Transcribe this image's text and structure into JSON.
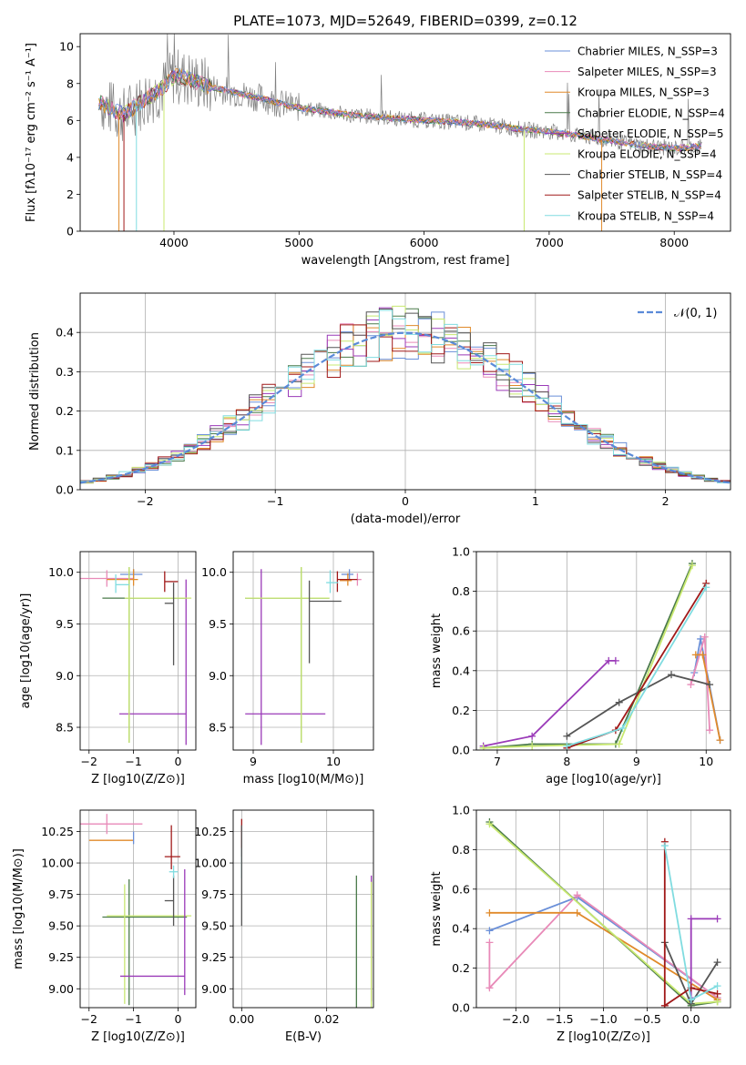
{
  "colors": {
    "chabrier_miles": "#6a8fd8",
    "salpeter_miles": "#e88ab8",
    "kroupa_miles": "#e08a2a",
    "chabrier_elodie": "#4a7a4a",
    "salpeter_elodie": "#9a3ab8",
    "kroupa_elodie": "#c8e870",
    "chabrier_stelib": "#555555",
    "salpeter_stelib": "#a01818",
    "kroupa_stelib": "#80dce0",
    "normal_fit": "#5a8ad8"
  },
  "chart_data": [
    {
      "type": "line",
      "title": "PLATE=1073, MJD=52649, FIBERID=0399, z=0.12",
      "xlabel": "wavelength [Angstrom, rest frame]",
      "ylabel": "Flux [fλ10⁻¹⁷ erg cm⁻² s⁻¹ A⁻¹]",
      "xlim": [
        3250,
        8450
      ],
      "ylim": [
        0,
        10.7
      ],
      "xticks": [
        4000,
        5000,
        6000,
        7000,
        8000
      ],
      "yticks": [
        0,
        2,
        4,
        6,
        8,
        10
      ],
      "legend_position": "top-right",
      "legend": [
        "Chabrier MILES, N_SSP=3",
        "Salpeter MILES, N_SSP=3",
        "Kroupa MILES, N_SSP=3",
        "Chabrier ELODIE, N_SSP=4",
        "Salpeter ELODIE, N_SSP=5",
        "Kroupa ELODIE, N_SSP=4",
        "Chabrier STELIB, N_SSP=4",
        "Salpeter STELIB, N_SSP=4",
        "Kroupa STELIB, N_SSP=4"
      ],
      "continuum": {
        "x": [
          3400,
          3500,
          3600,
          3700,
          3800,
          3900,
          4000,
          4100,
          4300,
          4500,
          4700,
          4860,
          5000,
          5200,
          5400,
          5600,
          5800,
          6000,
          6300,
          6600,
          6800,
          7000,
          7200,
          7400,
          7600,
          7800,
          8000,
          8200
        ],
        "y": [
          7.0,
          6.6,
          6.3,
          6.8,
          7.3,
          7.7,
          8.4,
          8.3,
          7.8,
          7.5,
          7.2,
          6.9,
          6.7,
          6.5,
          6.3,
          6.2,
          6.1,
          6.0,
          5.9,
          5.7,
          5.5,
          5.4,
          5.2,
          5.0,
          4.8,
          4.6,
          4.5,
          4.6
        ]
      }
    },
    {
      "type": "step",
      "xlabel": "(data-model)/error",
      "ylabel": "Normed distribution",
      "xlim": [
        -2.5,
        2.5
      ],
      "ylim": [
        0,
        0.5
      ],
      "xticks": [
        -2,
        -1,
        0,
        1,
        2
      ],
      "yticks": [
        0.0,
        0.1,
        0.2,
        0.3,
        0.4
      ],
      "legend": [
        "𝒩(0, 1)"
      ],
      "legend_position": "top-right",
      "bin_width": 0.1
    },
    {
      "type": "errorbar",
      "xlabel": "Z [log10(Z/Z⊙)]",
      "ylabel": "age  [log10(age/yr)]",
      "xlim": [
        -2.2,
        0.4
      ],
      "ylim": [
        8.28,
        10.2
      ],
      "xticks": [
        -2,
        -1,
        0
      ],
      "yticks": [
        8.5,
        9.0,
        9.5,
        10.0
      ],
      "points": [
        {
          "color": "chabrier_miles",
          "x": -1.0,
          "xerr": [
            0.3,
            0.2
          ],
          "y": 9.98,
          "yerr": [
            0.05,
            0.05
          ]
        },
        {
          "color": "salpeter_miles",
          "x": -1.6,
          "xerr": [
            0.6,
            0.6
          ],
          "y": 9.94,
          "yerr": [
            0.08,
            0.08
          ]
        },
        {
          "color": "kroupa_miles",
          "x": -1.0,
          "xerr": [
            0.6,
            0.1
          ],
          "y": 9.93,
          "yerr": [
            0.06,
            0.1
          ]
        },
        {
          "color": "chabrier_elodie",
          "x": -1.1,
          "xerr": [
            0.6,
            1.3
          ],
          "y": 9.75,
          "yerr": [
            1.4,
            0.3
          ]
        },
        {
          "color": "salpeter_elodie",
          "x": 0.18,
          "xerr": [
            1.5,
            0.0
          ],
          "y": 8.63,
          "yerr": [
            0.3,
            1.3
          ]
        },
        {
          "color": "kroupa_elodie",
          "x": -1.1,
          "xerr": [
            0.1,
            1.4
          ],
          "y": 9.75,
          "yerr": [
            1.4,
            0.3
          ]
        },
        {
          "color": "chabrier_stelib",
          "x": -0.1,
          "xerr": [
            0.2,
            0.0
          ],
          "y": 9.7,
          "yerr": [
            0.6,
            0.2
          ]
        },
        {
          "color": "salpeter_stelib",
          "x": -0.3,
          "xerr": [
            0.0,
            0.3
          ],
          "y": 9.91,
          "yerr": [
            0.1,
            0.1
          ]
        },
        {
          "color": "kroupa_stelib",
          "x": -1.4,
          "xerr": [
            0.0,
            0.3
          ],
          "y": 9.88,
          "yerr": [
            0.08,
            0.1
          ]
        }
      ]
    },
    {
      "type": "errorbar",
      "xlabel": "mass [log10(M/M⊙)]",
      "xlim": [
        8.75,
        10.5
      ],
      "ylim": [
        8.28,
        10.2
      ],
      "xticks": [
        9,
        10
      ],
      "yticks": [
        8.5,
        9.0,
        9.5,
        10.0
      ],
      "points": [
        {
          "color": "chabrier_miles",
          "x": 10.2,
          "xerr": [
            0.1,
            0.05
          ],
          "y": 9.98,
          "yerr": [
            0.05,
            0.05
          ]
        },
        {
          "color": "salpeter_miles",
          "x": 10.3,
          "xerr": [
            0.0,
            0.05
          ],
          "y": 9.93,
          "yerr": [
            0.06,
            0.06
          ]
        },
        {
          "color": "kroupa_miles",
          "x": 10.18,
          "xerr": [
            0.1,
            0.05
          ],
          "y": 9.92,
          "yerr": [
            0.05,
            0.07
          ]
        },
        {
          "color": "chabrier_elodie",
          "x": 9.6,
          "xerr": [
            0.7,
            0.35
          ],
          "y": 9.75,
          "yerr": [
            1.4,
            0.3
          ]
        },
        {
          "color": "salpeter_elodie",
          "x": 9.1,
          "xerr": [
            0.2,
            0.8
          ],
          "y": 8.63,
          "yerr": [
            0.3,
            1.4
          ]
        },
        {
          "color": "kroupa_elodie",
          "x": 9.6,
          "xerr": [
            0.7,
            0.35
          ],
          "y": 9.75,
          "yerr": [
            1.4,
            0.3
          ]
        },
        {
          "color": "chabrier_stelib",
          "x": 9.7,
          "xerr": [
            0.0,
            0.4
          ],
          "y": 9.72,
          "yerr": [
            0.6,
            0.2
          ]
        },
        {
          "color": "salpeter_stelib",
          "x": 10.05,
          "xerr": [
            0.0,
            0.25
          ],
          "y": 9.93,
          "yerr": [
            0.12,
            0.08
          ]
        },
        {
          "color": "kroupa_stelib",
          "x": 9.96,
          "xerr": [
            0.05,
            0.1
          ],
          "y": 9.9,
          "yerr": [
            0.1,
            0.12
          ]
        }
      ]
    },
    {
      "type": "line",
      "xlabel": "age  [log10(age/yr)]",
      "ylabel": "mass weight",
      "xlim": [
        6.7,
        10.35
      ],
      "ylim": [
        0,
        1
      ],
      "xticks": [
        7,
        8,
        9,
        10
      ],
      "yticks": [
        0.0,
        0.2,
        0.4,
        0.6,
        0.8,
        1.0
      ],
      "series": [
        {
          "color": "chabrier_miles",
          "x": [
            9.83,
            9.92,
            10.2
          ],
          "y": [
            0.39,
            0.56,
            0.05
          ]
        },
        {
          "color": "salpeter_miles",
          "x": [
            9.78,
            9.98,
            10.05
          ],
          "y": [
            0.33,
            0.57,
            0.1
          ]
        },
        {
          "color": "kroupa_miles",
          "x": [
            9.85,
            9.95,
            10.2
          ],
          "y": [
            0.48,
            0.48,
            0.05
          ]
        },
        {
          "color": "chabrier_elodie",
          "x": [
            6.8,
            7.5,
            8.7,
            9.8
          ],
          "y": [
            0.01,
            0.03,
            0.03,
            0.94
          ]
        },
        {
          "color": "salpeter_elodie",
          "x": [
            6.8,
            7.5,
            8.6,
            8.7
          ],
          "y": [
            0.02,
            0.07,
            0.45,
            0.45
          ]
        },
        {
          "color": "kroupa_elodie",
          "x": [
            6.8,
            7.5,
            8.75,
            9.8
          ],
          "y": [
            0.01,
            0.02,
            0.03,
            0.93
          ]
        },
        {
          "color": "chabrier_stelib",
          "x": [
            8.0,
            8.75,
            9.5,
            10.05
          ],
          "y": [
            0.07,
            0.24,
            0.38,
            0.33
          ]
        },
        {
          "color": "salpeter_stelib",
          "x": [
            8.0,
            8.7,
            10.0
          ],
          "y": [
            0.01,
            0.1,
            0.84
          ]
        },
        {
          "color": "kroupa_stelib",
          "x": [
            8.0,
            8.8,
            10.0
          ],
          "y": [
            0.02,
            0.11,
            0.82
          ]
        }
      ]
    },
    {
      "type": "errorbar",
      "xlabel": "Z [log10(Z/Z⊙)]",
      "ylabel": "mass [log10(M/M⊙)]",
      "xlim": [
        -2.2,
        0.4
      ],
      "ylim": [
        8.85,
        10.42
      ],
      "xticks": [
        -2,
        -1,
        0
      ],
      "yticks": [
        9.0,
        9.25,
        9.5,
        9.75,
        10.0,
        10.25,
        10.5
      ],
      "points": [
        {
          "color": "salpeter_miles",
          "x": -1.6,
          "xerr": [
            0.6,
            0.8
          ],
          "y": 10.31,
          "yerr": [
            0.08,
            0.08
          ]
        },
        {
          "color": "kroupa_miles",
          "x": -1.3,
          "xerr": [
            0.7,
            0.3
          ],
          "y": 10.18,
          "yerr": [
            0.0,
            0.0
          ]
        },
        {
          "color": "chabrier_miles",
          "x": -1.0,
          "xerr": [
            0.0,
            0.0
          ],
          "y": 10.2,
          "yerr": [
            0.05,
            0.05
          ]
        },
        {
          "color": "chabrier_elodie",
          "x": -1.1,
          "xerr": [
            0.6,
            1.3
          ],
          "y": 9.57,
          "yerr": [
            0.7,
            0.3
          ]
        },
        {
          "color": "kroupa_elodie",
          "x": -1.2,
          "xerr": [
            0.4,
            1.5
          ],
          "y": 9.58,
          "yerr": [
            0.7,
            0.25
          ]
        },
        {
          "color": "salpeter_elodie",
          "x": 0.15,
          "xerr": [
            1.45,
            0.0
          ],
          "y": 9.1,
          "yerr": [
            0.15,
            0.85
          ]
        },
        {
          "color": "chabrier_stelib",
          "x": -0.1,
          "xerr": [
            0.2,
            0.0
          ],
          "y": 9.7,
          "yerr": [
            0.2,
            0.2
          ]
        },
        {
          "color": "salpeter_stelib",
          "x": -0.15,
          "xerr": [
            0.15,
            0.2
          ],
          "y": 10.05,
          "yerr": [
            0.1,
            0.25
          ]
        },
        {
          "color": "kroupa_stelib",
          "x": -0.1,
          "xerr": [
            0.1,
            0.1
          ],
          "y": 9.93,
          "yerr": [
            0.05,
            0.05
          ]
        }
      ]
    },
    {
      "type": "errorbar",
      "xlabel": "E(B-V)",
      "xlim": [
        -0.002,
        0.031
      ],
      "ylim": [
        8.85,
        10.42
      ],
      "xticks": [
        0.0,
        0.02
      ],
      "yticks": [
        9.0,
        9.25,
        9.5,
        9.75,
        10.0,
        10.25,
        10.5
      ],
      "points": [
        {
          "color": "salpeter_stelib",
          "x": 0.0,
          "xerr": [
            0.0,
            0.0
          ],
          "y": 10.2,
          "yerr": [
            0.15,
            0.15
          ]
        },
        {
          "color": "kroupa_stelib",
          "x": 0.0,
          "xerr": [
            0.0,
            0.0
          ],
          "y": 10.0,
          "yerr": [
            0.12,
            0.12
          ]
        },
        {
          "color": "chabrier_stelib",
          "x": 0.0,
          "xerr": [
            0.0,
            0.0
          ],
          "y": 9.9,
          "yerr": [
            0.4,
            0.4
          ]
        },
        {
          "color": "chabrier_elodie",
          "x": 0.027,
          "xerr": [
            0.0,
            0.0
          ],
          "y": 9.3,
          "yerr": [
            0.45,
            0.6
          ]
        },
        {
          "color": "salpeter_elodie",
          "x": 0.0305,
          "xerr": [
            0.0,
            0.0
          ],
          "y": 9.4,
          "yerr": [
            0.5,
            0.5
          ]
        },
        {
          "color": "kroupa_elodie",
          "x": 0.0305,
          "xerr": [
            0.0,
            0.0
          ],
          "y": 9.3,
          "yerr": [
            0.45,
            0.55
          ]
        }
      ]
    },
    {
      "type": "line",
      "xlabel": "Z [log10(Z/Z⊙)]",
      "ylabel": "mass weight",
      "xlim": [
        -2.45,
        0.45
      ],
      "ylim": [
        0,
        1
      ],
      "xticks": [
        -2.0,
        -1.5,
        -1.0,
        -0.5,
        0.0
      ],
      "yticks": [
        0.0,
        0.2,
        0.4,
        0.6,
        0.8,
        1.0
      ],
      "series": [
        {
          "color": "chabrier_miles",
          "x": [
            -2.3,
            -1.3,
            0.3
          ],
          "y": [
            0.39,
            0.56,
            0.05
          ]
        },
        {
          "color": "salpeter_miles",
          "x": [
            -2.3,
            -2.3,
            -1.3,
            0.3
          ],
          "y": [
            0.33,
            0.1,
            0.57,
            0.05
          ]
        },
        {
          "color": "kroupa_miles",
          "x": [
            -2.3,
            -1.3,
            0.3
          ],
          "y": [
            0.48,
            0.48,
            0.04
          ]
        },
        {
          "color": "chabrier_elodie",
          "x": [
            -2.3,
            0.0,
            0.3
          ],
          "y": [
            0.94,
            0.01,
            0.03
          ]
        },
        {
          "color": "salpeter_elodie",
          "x": [
            0.0,
            0.0,
            0.3
          ],
          "y": [
            0.05,
            0.45,
            0.45
          ]
        },
        {
          "color": "kroupa_elodie",
          "x": [
            -2.3,
            0.0,
            0.3
          ],
          "y": [
            0.93,
            0.02,
            0.03
          ]
        },
        {
          "color": "chabrier_stelib",
          "x": [
            -0.3,
            0.0,
            0.3
          ],
          "y": [
            0.33,
            0.02,
            0.23
          ]
        },
        {
          "color": "salpeter_stelib",
          "x": [
            -0.3,
            -0.3,
            0.0,
            0.3
          ],
          "y": [
            0.84,
            0.01,
            0.1,
            0.07
          ]
        },
        {
          "color": "kroupa_stelib",
          "x": [
            -0.3,
            0.0,
            0.3
          ],
          "y": [
            0.82,
            0.04,
            0.11
          ]
        }
      ]
    }
  ]
}
